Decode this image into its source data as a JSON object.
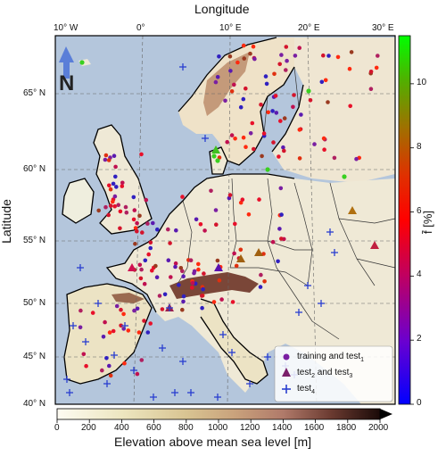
{
  "x_axis_title": "Longitude",
  "y_axis_title": "Latitude",
  "lon_ticks": [
    "10° W",
    "0°",
    "10° E",
    "20° E",
    "30° E"
  ],
  "lat_ticks": [
    "65° N",
    "60° N",
    "55° N",
    "50° N",
    "45° N",
    "40° N"
  ],
  "north_label": "N",
  "colorbar_right": {
    "title": "f̄ [%]",
    "ticks": [
      "0",
      "2",
      "4",
      "6",
      "8",
      "10"
    ],
    "range": [
      0,
      11.5
    ],
    "colors": [
      "#0000ff",
      "#8000c0",
      "#e00030",
      "#ff2000",
      "#c07000",
      "#00ff00"
    ]
  },
  "colorbar_bottom": {
    "title": "Elevation above mean sea level [m]",
    "ticks": [
      "0",
      "200",
      "400",
      "600",
      "800",
      "1000",
      "1200",
      "1400",
      "1600",
      "1800",
      "2000"
    ],
    "range": [
      0,
      2000
    ]
  },
  "legend": {
    "items": [
      {
        "label": "training and test",
        "sub": "1",
        "symbol": "circle",
        "color": "#7a1fa2"
      },
      {
        "label": "test",
        "sub": "2",
        "after": " and test",
        "sub2": "3",
        "symbol": "triangle",
        "color": "#7a1f6a"
      },
      {
        "label": "test",
        "sub": "4",
        "symbol": "plus",
        "color": "#2a3fd0"
      }
    ]
  },
  "colors": {
    "sea": "#b4c6dc",
    "land": "#f2ede0",
    "border": "#333333"
  }
}
